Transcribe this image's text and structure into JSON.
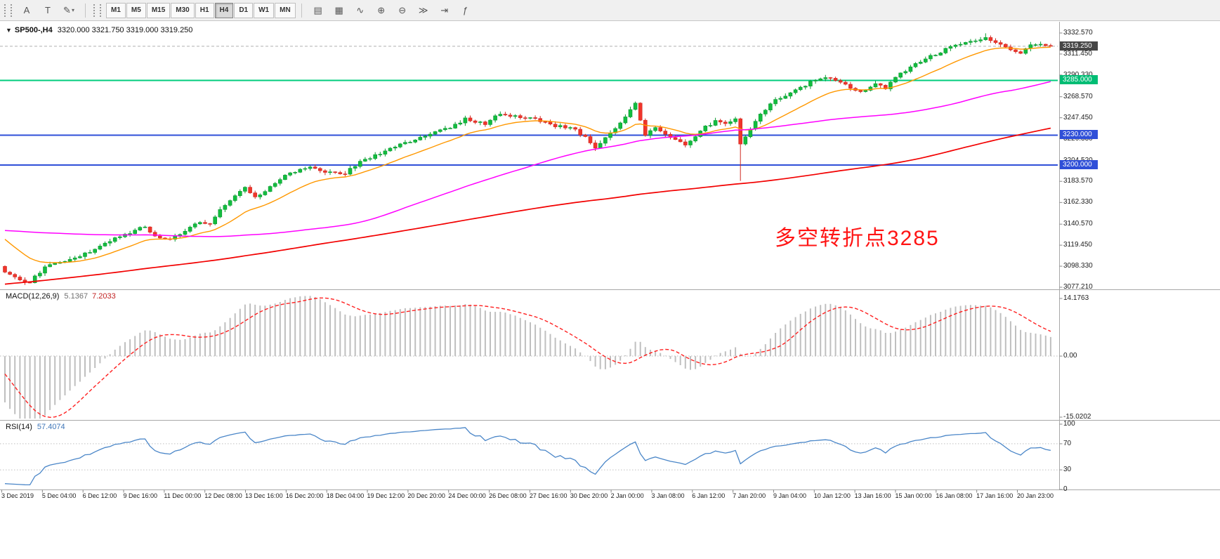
{
  "toolbar": {
    "left_tools": [
      {
        "name": "text-label-tool",
        "glyph": "A"
      },
      {
        "name": "text-tool",
        "glyph": "T"
      },
      {
        "name": "draw-tools-dropdown",
        "glyph": "✎",
        "dropdown": true
      }
    ],
    "timeframes": [
      {
        "label": "M1"
      },
      {
        "label": "M5"
      },
      {
        "label": "M15"
      },
      {
        "label": "M30"
      },
      {
        "label": "H1"
      },
      {
        "label": "H4",
        "active": true
      },
      {
        "label": "D1"
      },
      {
        "label": "W1"
      },
      {
        "label": "MN"
      }
    ],
    "active_timeframe": "H4",
    "right_tools": [
      {
        "name": "bar-chart-button",
        "glyph": "▤"
      },
      {
        "name": "candlestick-chart-button",
        "glyph": "▦"
      },
      {
        "name": "line-chart-button",
        "glyph": "∿"
      },
      {
        "name": "zoom-in-button",
        "glyph": "⊕"
      },
      {
        "name": "zoom-out-button",
        "glyph": "⊖"
      },
      {
        "name": "auto-scroll-button",
        "glyph": "≫"
      },
      {
        "name": "chart-shift-button",
        "glyph": "⇥"
      },
      {
        "name": "indicators-button",
        "glyph": "ƒ"
      }
    ]
  },
  "chart_title": {
    "collapse_icon": "▼",
    "symbol_period": "SP500-,H4",
    "ohlc": "3320.000 3321.750 3319.000 3319.250"
  },
  "annotation": {
    "text": "多空转折点3285",
    "color": "#ff1414"
  },
  "chart_data": {
    "type": "candlestick",
    "symbol": "SP500-",
    "timeframe": "H4",
    "ylim": [
      3077.21,
      3332.57
    ],
    "bar_count": 210,
    "pre_bars": 190,
    "last_bar": {
      "open": 3320.0,
      "high": 3321.75,
      "low": 3319.0,
      "close": 3319.25
    },
    "spike": {
      "index": 147,
      "low": 3184
    },
    "peak": {
      "index": 196,
      "high": 3332.3
    },
    "price_path_anchors": [
      [
        -190,
        2992
      ],
      [
        -160,
        3014
      ],
      [
        -130,
        3038
      ],
      [
        -100,
        3072
      ],
      [
        -65,
        3116
      ],
      [
        -38,
        3146
      ],
      [
        -20,
        3150
      ],
      [
        -12,
        3154
      ],
      [
        -6,
        3134
      ],
      [
        -2,
        3106
      ],
      [
        0,
        3092
      ],
      [
        3,
        3084
      ],
      [
        5,
        3082
      ],
      [
        8,
        3098
      ],
      [
        13,
        3106
      ],
      [
        17,
        3112
      ],
      [
        21,
        3124
      ],
      [
        24,
        3130
      ],
      [
        28,
        3139
      ],
      [
        30,
        3128
      ],
      [
        33,
        3125
      ],
      [
        36,
        3133
      ],
      [
        38,
        3141
      ],
      [
        41,
        3142
      ],
      [
        43,
        3155
      ],
      [
        46,
        3168
      ],
      [
        48,
        3178
      ],
      [
        50,
        3167
      ],
      [
        54,
        3182
      ],
      [
        57,
        3192
      ],
      [
        61,
        3198
      ],
      [
        64,
        3192
      ],
      [
        68,
        3192
      ],
      [
        71,
        3203
      ],
      [
        75,
        3212
      ],
      [
        78,
        3218
      ],
      [
        82,
        3226
      ],
      [
        85,
        3232
      ],
      [
        89,
        3238
      ],
      [
        92,
        3246
      ],
      [
        96,
        3241
      ],
      [
        99,
        3252
      ],
      [
        103,
        3248
      ],
      [
        106,
        3246
      ],
      [
        109,
        3240
      ],
      [
        113,
        3238
      ],
      [
        116,
        3228
      ],
      [
        118,
        3217
      ],
      [
        121,
        3232
      ],
      [
        124,
        3248
      ],
      [
        126,
        3261
      ],
      [
        128,
        3229
      ],
      [
        130,
        3238
      ],
      [
        133,
        3228
      ],
      [
        136,
        3219
      ],
      [
        139,
        3235
      ],
      [
        142,
        3244
      ],
      [
        144,
        3241
      ],
      [
        146,
        3246
      ],
      [
        147,
        3222
      ],
      [
        149,
        3236
      ],
      [
        151,
        3252
      ],
      [
        154,
        3265
      ],
      [
        157,
        3272
      ],
      [
        160,
        3280
      ],
      [
        162,
        3286
      ],
      [
        165,
        3288
      ],
      [
        168,
        3280
      ],
      [
        171,
        3273
      ],
      [
        174,
        3282
      ],
      [
        176,
        3277
      ],
      [
        179,
        3292
      ],
      [
        182,
        3301
      ],
      [
        185,
        3309
      ],
      [
        188,
        3316
      ],
      [
        190,
        3320
      ],
      [
        193,
        3324
      ],
      [
        196,
        3328
      ],
      [
        198,
        3323
      ],
      [
        201,
        3315
      ],
      [
        203,
        3311
      ],
      [
        204,
        3318
      ],
      [
        206,
        3322
      ],
      [
        208,
        3321
      ],
      [
        209,
        3319.3
      ]
    ],
    "y_ticks": [
      "3332.570",
      "3311.450",
      "3290.330",
      "3268.570",
      "3247.450",
      "3226.330",
      "3204.520",
      "3183.570",
      "3162.330",
      "3140.570",
      "3119.450",
      "3098.330",
      "3077.210"
    ],
    "price_badges": [
      {
        "name": "current-price-badge",
        "label": "3319.250",
        "price": 3319.25,
        "bg": "#454545"
      },
      {
        "name": "hline-3285-badge",
        "label": "3285.000",
        "price": 3285.0,
        "bg": "#00bd74"
      },
      {
        "name": "hline-3230-badge",
        "label": "3230.000",
        "price": 3230.0,
        "bg": "#2f4fd8"
      },
      {
        "name": "hline-3200-badge",
        "label": "3200.000",
        "price": 3200.0,
        "bg": "#2f4fd8"
      }
    ],
    "hlines": [
      {
        "price": 3285.0,
        "color": "#00cc7d",
        "width": 2
      },
      {
        "price": 3230.0,
        "color": "#2f4fd8",
        "width": 2
      },
      {
        "price": 3200.0,
        "color": "#2f4fd8",
        "width": 2
      }
    ],
    "bid_line": {
      "price": 3319.25,
      "color": "#b0b0b0"
    },
    "candle_colors": {
      "up_fill": "#12bd3f",
      "up_stroke": "#0a9a30",
      "down_fill": "#f0352b",
      "down_stroke": "#cf2a22"
    },
    "moving_averages": [
      {
        "name": "ma-fast",
        "color": "#ff9800",
        "type": "ema",
        "period": 16,
        "width": 1.4
      },
      {
        "name": "ma-mid",
        "color": "#ff00ff",
        "type": "sma",
        "period": 75,
        "width": 1.5
      },
      {
        "name": "ma-slow",
        "color": "#f20000",
        "type": "sma",
        "period": 185,
        "width": 1.7
      }
    ],
    "time_labels": [
      "3 Dec 2019",
      "5 Dec 04:00",
      "6 Dec 12:00",
      "9 Dec 16:00",
      "11 Dec 00:00",
      "12 Dec 08:00",
      "13 Dec 16:00",
      "16 Dec 20:00",
      "18 Dec 04:00",
      "19 Dec 12:00",
      "20 Dec 20:00",
      "24 Dec 00:00",
      "26 Dec 08:00",
      "27 Dec 16:00",
      "30 Dec 20:00",
      "2 Jan 00:00",
      "3 Jan 08:00",
      "6 Jan 12:00",
      "7 Jan 20:00",
      "9 Jan 04:00",
      "10 Jan 12:00",
      "13 Jan 16:00",
      "15 Jan 00:00",
      "16 Jan 08:00",
      "17 Jan 16:00",
      "20 Jan 23:00"
    ]
  },
  "macd": {
    "title": "MACD(12,26,9)",
    "value_main": "5.1367",
    "value_signal": "7.2033",
    "params": [
      12,
      26,
      9
    ],
    "scale": [
      {
        "label": "14.1763",
        "value": 14.1763
      },
      {
        "label": "0.00",
        "value": 0
      },
      {
        "label": "-15.0202",
        "value": -15.0202
      }
    ],
    "histogram_color": "#bfbfbf",
    "signal_color": "#ff2020"
  },
  "rsi": {
    "title": "RSI(14)",
    "value": "57.4074",
    "params": [
      14
    ],
    "scale": [
      {
        "label": "100",
        "value": 100
      },
      {
        "label": "70",
        "value": 70
      },
      {
        "label": "30",
        "value": 30
      },
      {
        "label": "0",
        "value": 0
      }
    ],
    "levels": [
      70,
      30
    ],
    "line_color": "#4a86c8"
  }
}
